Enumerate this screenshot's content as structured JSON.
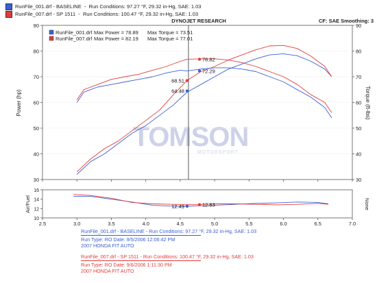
{
  "legend": [
    {
      "label": "RunFile_001.drf - BASELINE  -  Run Conditions: 97.27 °F, 29.32 in-Hg, SAE: 1.03",
      "color": "#3b5fd6"
    },
    {
      "label": "RunFile_007.drf - SP 1511  -  Run Conditions: 100.47 °F, 29.32 in-Hg, SAE: 1.03",
      "color": "#e23b3b"
    }
  ],
  "header": {
    "center_title": "DYNOJET RESEARCH",
    "right_info": "CF: SAE  Smoothing: 3"
  },
  "inner_legend": [
    {
      "file": "RunFile_001.drf",
      "power": "Max Power = 78.89",
      "torque": "Max Torque = 73.51"
    },
    {
      "file": "RunFile_007.drf",
      "power": "Max Power = 82.19",
      "torque": "Max Torque = 77.01"
    }
  ],
  "watermark": "TOMSON",
  "watermark_sub": "MOTORSPORT",
  "chart_data": [
    {
      "type": "line",
      "ylabel": "Power (hp)",
      "y2label": "Torque (ft-lbs)",
      "xlim": [
        2.5,
        7.0
      ],
      "ylim": [
        30,
        90
      ],
      "y2lim": [
        30,
        90
      ],
      "yticks": [
        30,
        40,
        50,
        60,
        70,
        80,
        90
      ],
      "xticks": [
        2.5,
        3.0,
        3.5,
        4.0,
        4.5,
        5.0,
        5.5,
        6.0,
        6.5,
        7.0
      ],
      "cursor_x": 4.62,
      "series": [
        {
          "name": "RunFile_001.drf",
          "quantity": "power",
          "color": "#3b5fd6",
          "x": [
            3.0,
            3.2,
            3.4,
            3.6,
            3.8,
            4.0,
            4.2,
            4.4,
            4.6,
            4.8,
            5.0,
            5.2,
            5.4,
            5.6,
            5.8,
            6.0,
            6.2,
            6.4,
            6.6,
            6.7
          ],
          "y": [
            32,
            37,
            40,
            44,
            48,
            51,
            55,
            59,
            64,
            67,
            70,
            73,
            75,
            77,
            78.5,
            78.9,
            78.2,
            76,
            73,
            70
          ]
        },
        {
          "name": "RunFile_007.drf",
          "quantity": "power",
          "color": "#e23b3b",
          "x": [
            3.0,
            3.2,
            3.4,
            3.6,
            3.8,
            4.0,
            4.2,
            4.4,
            4.6,
            4.8,
            5.0,
            5.2,
            5.4,
            5.6,
            5.8,
            6.0,
            6.2,
            6.4,
            6.6,
            6.7
          ],
          "y": [
            33,
            38,
            42,
            45,
            49,
            53,
            57,
            63,
            68.5,
            72,
            74,
            76.5,
            78.5,
            80.5,
            82,
            82.19,
            81,
            78,
            74,
            70
          ]
        },
        {
          "name": "RunFile_001.drf",
          "quantity": "torque",
          "color": "#3b5fd6",
          "x": [
            3.0,
            3.1,
            3.3,
            3.5,
            3.7,
            3.9,
            4.1,
            4.3,
            4.5,
            4.6,
            4.8,
            5.0,
            5.2,
            5.4,
            5.6,
            5.8,
            6.0,
            6.2,
            6.4,
            6.6,
            6.7
          ],
          "y": [
            60,
            64,
            66,
            67,
            68,
            69,
            70,
            71.5,
            72.5,
            72.29,
            73,
            73.5,
            73.5,
            73,
            72,
            70,
            68,
            65,
            62,
            58,
            54
          ]
        },
        {
          "name": "RunFile_007.drf",
          "quantity": "torque",
          "color": "#e23b3b",
          "x": [
            3.0,
            3.1,
            3.3,
            3.5,
            3.7,
            3.9,
            4.1,
            4.3,
            4.5,
            4.6,
            4.8,
            5.0,
            5.2,
            5.4,
            5.6,
            5.8,
            6.0,
            6.2,
            6.4,
            6.6,
            6.7
          ],
          "y": [
            61,
            65,
            67,
            69,
            70,
            71,
            72.5,
            74,
            76,
            76.82,
            77,
            77,
            76.5,
            75.5,
            74,
            72,
            70,
            67,
            63,
            60,
            56
          ]
        }
      ],
      "cursor_labels": [
        {
          "text": "76.82",
          "color": "#e23b3b",
          "x": 4.75,
          "y": 76.82,
          "dot_x": 4.78
        },
        {
          "text": "72.29",
          "color": "#3b5fd6",
          "x": 4.75,
          "y": 72.29,
          "dot_x": 4.78
        },
        {
          "text": "68.51",
          "color": "#e23b3b",
          "x": 4.57,
          "y": 68.51,
          "dot_x": 4.6
        },
        {
          "text": "64.48",
          "color": "#3b5fd6",
          "x": 4.57,
          "y": 64.48,
          "dot_x": 4.6
        }
      ]
    },
    {
      "type": "line",
      "ylabel": "Air/Fuel",
      "y2label": "None",
      "xlim": [
        2.5,
        7.0
      ],
      "ylim": [
        10,
        16
      ],
      "yticks": [
        10,
        12,
        14,
        16
      ],
      "xticks": [
        2.5,
        3.0,
        3.5,
        4.0,
        4.5,
        5.0,
        5.5,
        6.0,
        6.5,
        7.0
      ],
      "series": [
        {
          "name": "RunFile_001.drf",
          "color": "#3b5fd6",
          "x": [
            2.95,
            3.2,
            3.5,
            3.8,
            4.1,
            4.4,
            4.6,
            4.8,
            5.0,
            5.3,
            5.6,
            5.9,
            6.2,
            6.5,
            6.65
          ],
          "y": [
            14.6,
            14.6,
            14.0,
            13.4,
            12.7,
            12.5,
            12.49,
            12.6,
            12.7,
            12.9,
            13.1,
            13.2,
            13.4,
            13.3,
            13.0
          ]
        },
        {
          "name": "RunFile_007.drf",
          "color": "#e23b3b",
          "x": [
            2.95,
            3.2,
            3.5,
            3.8,
            4.1,
            4.4,
            4.6,
            4.8,
            5.0,
            5.3,
            5.6,
            5.9,
            6.2,
            6.5,
            6.65
          ],
          "y": [
            15.0,
            14.8,
            14.2,
            13.3,
            13.0,
            12.9,
            12.83,
            12.9,
            13.0,
            13.0,
            12.9,
            12.8,
            12.9,
            13.1,
            12.9
          ]
        }
      ],
      "cursor_labels": [
        {
          "text": "12.49",
          "color": "#3b5fd6",
          "x": 4.57,
          "y": 12.49,
          "dot_x": 4.6
        },
        {
          "text": "12.83",
          "color": "#e23b3b",
          "x": 4.75,
          "y": 12.83,
          "dot_x": 4.78
        }
      ]
    }
  ],
  "footer": {
    "run1": {
      "line1": "RunFile_001.drf - BASELINE  -  Run Conditions: 97.27 °F, 29.32 in-Hg, SAE: 1.03",
      "line2": "Run Type: RO  Date: 9/5/2006 12:06:42 PM",
      "line3": "2007 HONDA FIT AUTO"
    },
    "run2": {
      "line1": "RunFile_007.drf - SP 1511  -  Run Conditions: 100.47 °F, 29.32 in-Hg, SAE: 1.03",
      "line2": "Run Type: RO  Date: 9/6/2006 1:11:30 PM",
      "line3": "2007 HONDA FIT AUTO"
    }
  }
}
